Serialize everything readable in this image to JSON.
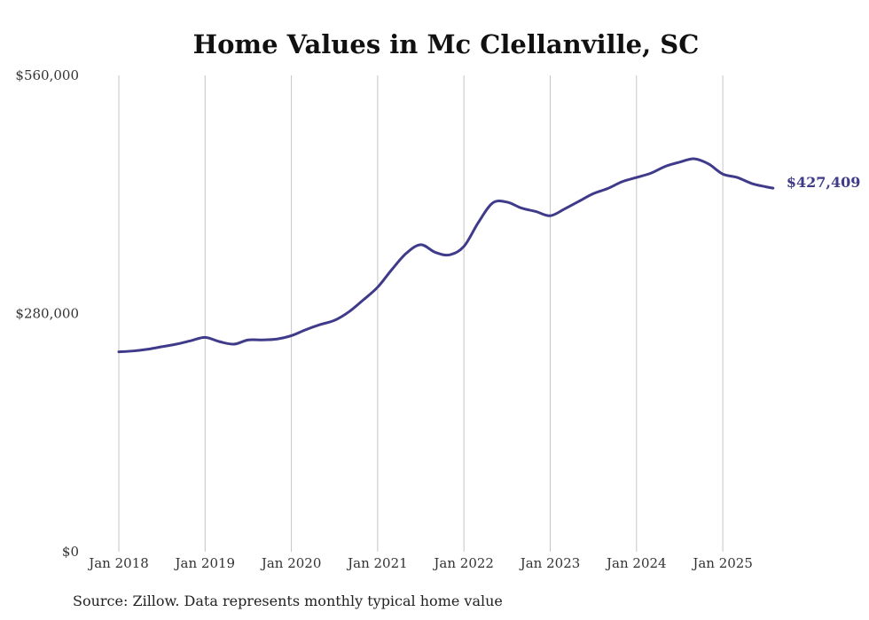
{
  "chart_data": {
    "type": "line",
    "title": "Home Values in Mc Clellanville, SC",
    "xlabel": "",
    "ylabel": "",
    "ylim": [
      0,
      560000
    ],
    "y_ticks": [
      0,
      280000,
      560000
    ],
    "y_tick_labels": [
      "$0",
      "$280,000",
      "$560,000"
    ],
    "x_ticks": [
      "2018-01",
      "2019-01",
      "2020-01",
      "2021-01",
      "2022-01",
      "2023-01",
      "2024-01",
      "2025-01"
    ],
    "x_tick_labels": [
      "Jan 2018",
      "Jan 2019",
      "Jan 2020",
      "Jan 2021",
      "Jan 2022",
      "Jan 2023",
      "Jan 2024",
      "Jan 2025"
    ],
    "grid": "vertical",
    "legend": "none",
    "end_label": "$427,409",
    "series": [
      {
        "color": "#3f3a8a",
        "points": [
          [
            "2018-01",
            235000
          ],
          [
            "2018-03",
            236000
          ],
          [
            "2018-05",
            238000
          ],
          [
            "2018-07",
            241000
          ],
          [
            "2018-09",
            244000
          ],
          [
            "2018-11",
            248000
          ],
          [
            "2019-01",
            252000
          ],
          [
            "2019-03",
            247000
          ],
          [
            "2019-05",
            244000
          ],
          [
            "2019-07",
            249000
          ],
          [
            "2019-09",
            249000
          ],
          [
            "2019-11",
            250000
          ],
          [
            "2020-01",
            254000
          ],
          [
            "2020-03",
            261000
          ],
          [
            "2020-05",
            267000
          ],
          [
            "2020-07",
            272000
          ],
          [
            "2020-09",
            282000
          ],
          [
            "2020-11",
            296000
          ],
          [
            "2021-01",
            311000
          ],
          [
            "2021-03",
            332000
          ],
          [
            "2021-05",
            351000
          ],
          [
            "2021-07",
            361000
          ],
          [
            "2021-09",
            352000
          ],
          [
            "2021-11",
            349000
          ],
          [
            "2022-01",
            359000
          ],
          [
            "2022-03",
            387000
          ],
          [
            "2022-05",
            410000
          ],
          [
            "2022-07",
            411000
          ],
          [
            "2022-09",
            404000
          ],
          [
            "2022-11",
            400000
          ],
          [
            "2023-01",
            395000
          ],
          [
            "2023-03",
            403000
          ],
          [
            "2023-05",
            412000
          ],
          [
            "2023-07",
            421000
          ],
          [
            "2023-09",
            427000
          ],
          [
            "2023-11",
            435000
          ],
          [
            "2024-01",
            440000
          ],
          [
            "2024-03",
            445000
          ],
          [
            "2024-05",
            453000
          ],
          [
            "2024-07",
            458000
          ],
          [
            "2024-09",
            462000
          ],
          [
            "2024-11",
            456000
          ],
          [
            "2025-01",
            444000
          ],
          [
            "2025-03",
            440000
          ],
          [
            "2025-05",
            433000
          ],
          [
            "2025-07",
            429000
          ],
          [
            "2025-08",
            427409
          ]
        ]
      }
    ],
    "source": "Source: Zillow. Data represents monthly typical home value"
  }
}
